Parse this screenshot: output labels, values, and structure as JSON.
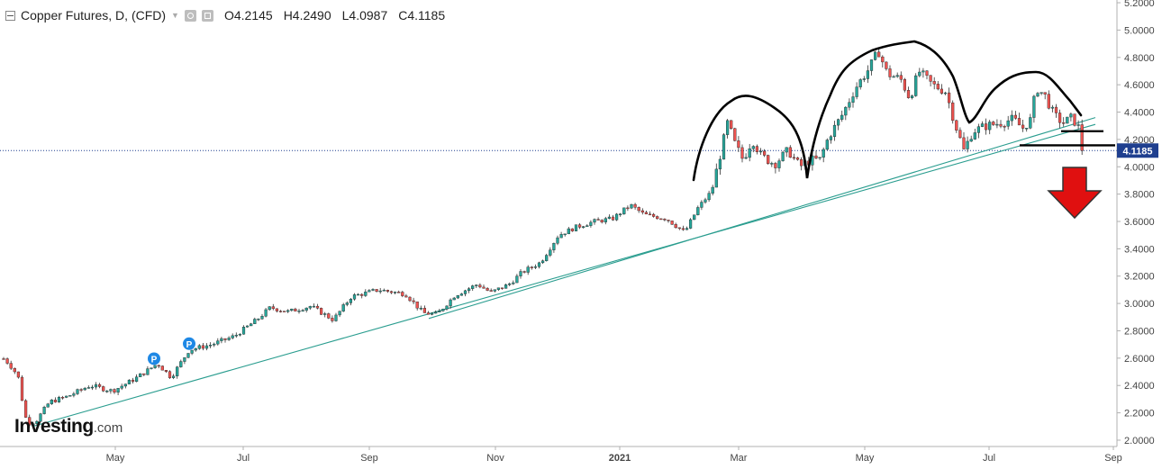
{
  "header": {
    "title": "Copper Futures, D, (CFD)",
    "open": "O4.2145",
    "high": "H4.2490",
    "low": "L4.0987",
    "close": "C4.1185",
    "icons": [
      "collapse-icon",
      "dropdown-caret-icon",
      "settings-icon",
      "visibility-icon"
    ]
  },
  "brand": {
    "name": "Investing",
    "domain": ".com"
  },
  "colors": {
    "up": "#26a69a",
    "down": "#ef5350",
    "trendline": "#2a9d8f",
    "price_line": "#1f3f8f",
    "price_label_bg": "#1f3f8f",
    "pattern": "#000000",
    "arrow": "#e01010",
    "marker": "#1e88e5"
  },
  "chart_data": {
    "type": "candlestick",
    "symbol": "Copper Futures",
    "timeframe": "D",
    "x_ticks": [
      "May",
      "Jul",
      "Sep",
      "Nov",
      "2021",
      "Mar",
      "May",
      "Jul",
      "Sep"
    ],
    "y_ticks": [
      "2.0000",
      "2.2000",
      "2.4000",
      "2.6000",
      "2.8000",
      "3.0000",
      "3.2000",
      "3.4000",
      "3.6000",
      "3.8000",
      "4.0000",
      "4.2000",
      "4.4000",
      "4.6000",
      "4.8000",
      "5.0000",
      "5.2000"
    ],
    "ylim": [
      1.98,
      5.22
    ],
    "last_price": 4.1185,
    "last_price_label": "4.1185",
    "open": 4.2145,
    "high": 4.249,
    "low": 4.0987,
    "close": 4.1185,
    "events": [
      {
        "label": "P",
        "value": 2.53
      },
      {
        "label": "P",
        "value": 2.64
      }
    ],
    "anchors": [
      [
        0,
        2.62
      ],
      [
        10,
        2.56
      ],
      [
        20,
        2.47
      ],
      [
        25,
        2.28
      ],
      [
        30,
        2.12
      ],
      [
        40,
        2.14
      ],
      [
        55,
        2.28
      ],
      [
        75,
        2.32
      ],
      [
        100,
        2.4
      ],
      [
        125,
        2.36
      ],
      [
        150,
        2.45
      ],
      [
        175,
        2.56
      ],
      [
        190,
        2.46
      ],
      [
        210,
        2.66
      ],
      [
        235,
        2.7
      ],
      [
        260,
        2.76
      ],
      [
        285,
        2.88
      ],
      [
        300,
        2.97
      ],
      [
        320,
        2.94
      ],
      [
        345,
        2.98
      ],
      [
        370,
        2.88
      ],
      [
        390,
        3.05
      ],
      [
        420,
        3.1
      ],
      [
        450,
        3.07
      ],
      [
        470,
        2.93
      ],
      [
        485,
        2.92
      ],
      [
        505,
        3.06
      ],
      [
        530,
        3.14
      ],
      [
        545,
        3.08
      ],
      [
        565,
        3.14
      ],
      [
        580,
        3.23
      ],
      [
        600,
        3.3
      ],
      [
        620,
        3.5
      ],
      [
        640,
        3.56
      ],
      [
        660,
        3.6
      ],
      [
        680,
        3.62
      ],
      [
        700,
        3.72
      ],
      [
        715,
        3.65
      ],
      [
        740,
        3.62
      ],
      [
        760,
        3.52
      ],
      [
        775,
        3.7
      ],
      [
        790,
        3.82
      ],
      [
        800,
        4.1
      ],
      [
        808,
        4.33
      ],
      [
        815,
        4.18
      ],
      [
        825,
        4.05
      ],
      [
        835,
        4.2
      ],
      [
        845,
        4.08
      ],
      [
        860,
        4.02
      ],
      [
        875,
        4.12
      ],
      [
        888,
        4.0
      ],
      [
        900,
        4.05
      ],
      [
        910,
        4.05
      ],
      [
        920,
        4.22
      ],
      [
        935,
        4.38
      ],
      [
        950,
        4.58
      ],
      [
        965,
        4.72
      ],
      [
        975,
        4.85
      ],
      [
        985,
        4.68
      ],
      [
        1000,
        4.64
      ],
      [
        1010,
        4.5
      ],
      [
        1020,
        4.7
      ],
      [
        1035,
        4.6
      ],
      [
        1050,
        4.55
      ],
      [
        1060,
        4.32
      ],
      [
        1070,
        4.12
      ],
      [
        1080,
        4.26
      ],
      [
        1095,
        4.3
      ],
      [
        1110,
        4.32
      ],
      [
        1125,
        4.35
      ],
      [
        1135,
        4.28
      ],
      [
        1145,
        4.35
      ],
      [
        1150,
        4.58
      ],
      [
        1160,
        4.52
      ],
      [
        1170,
        4.38
      ],
      [
        1180,
        4.32
      ],
      [
        1190,
        4.36
      ],
      [
        1198,
        4.28
      ],
      [
        1205,
        4.12
      ]
    ],
    "trendlines": [
      {
        "name": "lower",
        "start": [
          36,
          2.1
        ],
        "end": [
          1216,
          4.31
        ]
      },
      {
        "name": "upper",
        "start": [
          476,
          2.89
        ],
        "end": [
          1216,
          4.36
        ]
      }
    ],
    "pattern_neckline": 4.17,
    "annotations": [
      "head-and-shoulders-outline",
      "neckline",
      "down-arrow"
    ]
  }
}
